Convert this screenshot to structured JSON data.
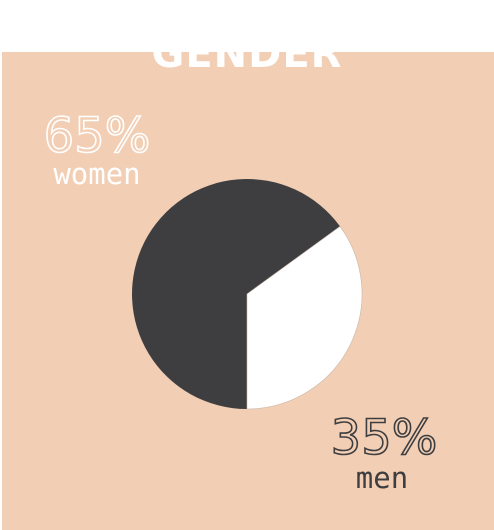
{
  "chart_data": {
    "type": "pie",
    "title": "GENDER",
    "slices": [
      {
        "label": "women",
        "value": 65,
        "display": "65%",
        "color": "#3e3e40"
      },
      {
        "label": "men",
        "value": 35,
        "display": "35%",
        "color": "#ffffff"
      }
    ]
  },
  "colors": {
    "background": "#f1ceb4",
    "women_text": "#ffffff",
    "men_text": "#3e3e40"
  }
}
